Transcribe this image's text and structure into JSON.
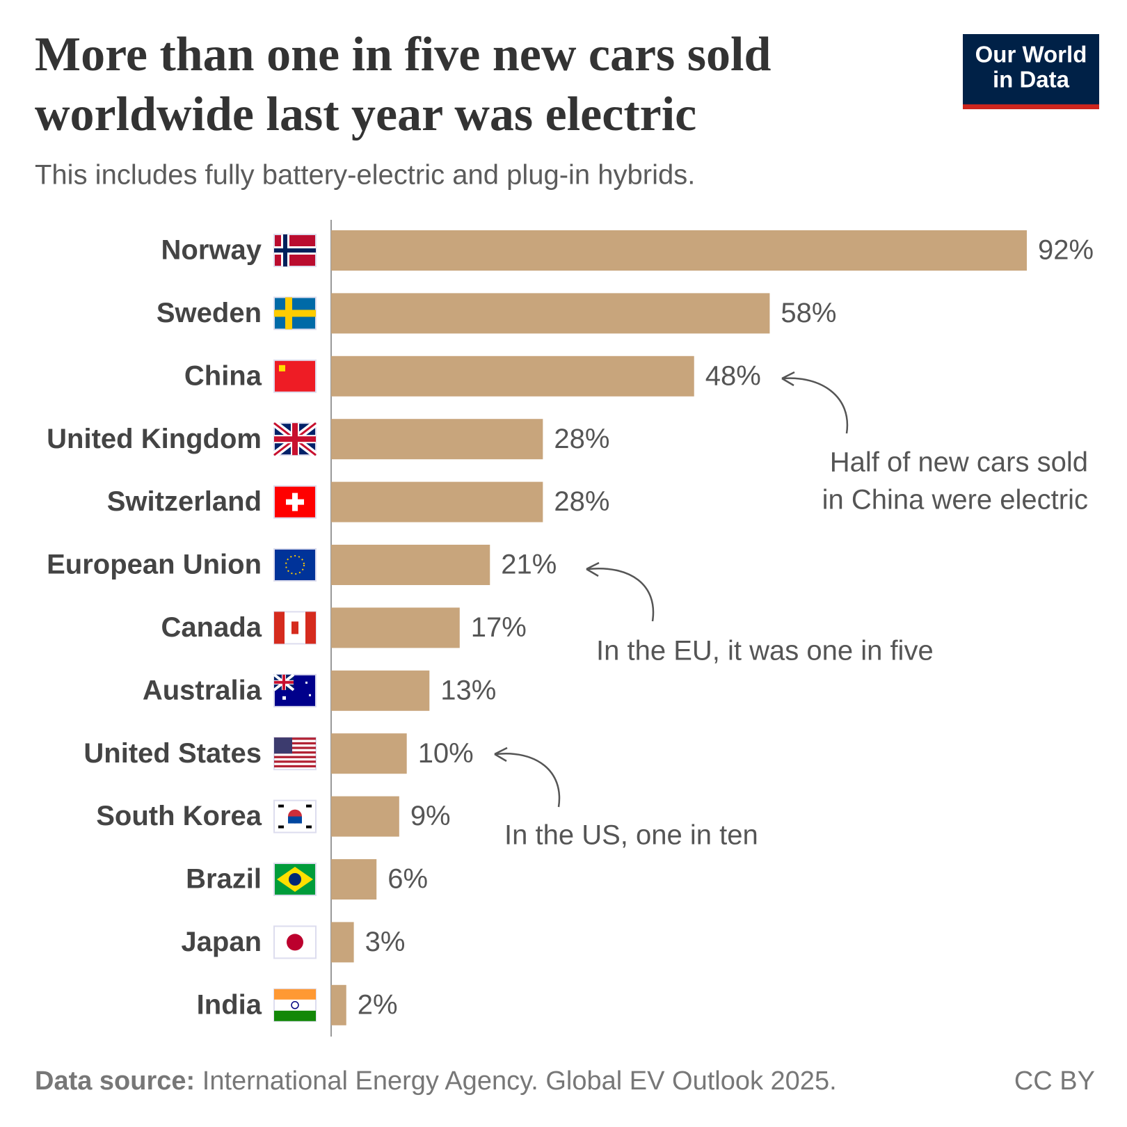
{
  "logo": [
    "Our World",
    "in Data"
  ],
  "chart_data": {
    "type": "bar",
    "orientation": "horizontal",
    "title": [
      "More than one in five new cars sold",
      "worldwide last year was electric"
    ],
    "subtitle": "This includes fully battery-electric and plug-in hybrids.",
    "categories": [
      "Norway",
      "Sweden",
      "China",
      "United Kingdom",
      "Switzerland",
      "European Union",
      "Canada",
      "Australia",
      "United States",
      "South Korea",
      "Brazil",
      "Japan",
      "India"
    ],
    "values": [
      92,
      58,
      48,
      28,
      28,
      21,
      17,
      13,
      10,
      9,
      6,
      3,
      2
    ],
    "value_labels": [
      "92%",
      "58%",
      "48%",
      "28%",
      "28%",
      "21%",
      "17%",
      "13%",
      "10%",
      "9%",
      "6%",
      "3%",
      "2%"
    ],
    "color": "#c8a57c",
    "annotations": [
      {
        "lines": [
          "Half of new cars sold",
          "in China were electric"
        ]
      },
      {
        "lines": [
          "In the EU, it was one in five"
        ]
      },
      {
        "lines": [
          "In the US, one in ten"
        ]
      }
    ],
    "source_label": "Data source:",
    "source": "International Energy Agency. Global EV Outlook 2025.",
    "license": "CC BY"
  }
}
